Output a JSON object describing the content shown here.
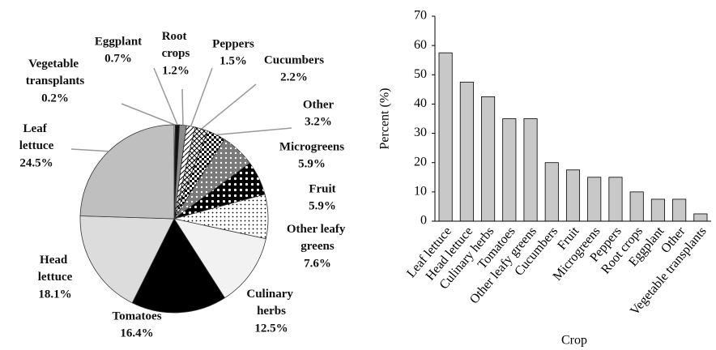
{
  "chart_data": [
    {
      "type": "pie",
      "categories": [
        "Vegetable transplants",
        "Eggplant",
        "Root crops",
        "Peppers",
        "Cucumbers",
        "Other",
        "Microgreens",
        "Fruit",
        "Other leafy greens",
        "Culinary herbs",
        "Tomatoes",
        "Head lettuce",
        "Leaf lettuce"
      ],
      "values": [
        0.2,
        0.7,
        1.2,
        1.5,
        2.2,
        3.2,
        5.9,
        5.9,
        7.6,
        12.5,
        16.4,
        18.1,
        24.5
      ],
      "value_labels": [
        "0.2%",
        "0.7%",
        "1.2%",
        "1.5%",
        "2.2%",
        "3.2%",
        "5.9%",
        "5.9%",
        "7.6%",
        "12.5%",
        "16.4%",
        "18.1%",
        "24.5%"
      ],
      "colors": [
        "#ffffff",
        "#111111",
        "#8c8c8c",
        "#ffffff",
        "#ffffff",
        "#ffffff",
        "#7a7a7a",
        "#000000",
        "#ffffff",
        "#f2f2f2",
        "#000000",
        "#dcdcdc",
        "#bfbfbf"
      ]
    },
    {
      "type": "bar",
      "categories": [
        "Leaf lettuce",
        "Head lettuce",
        "Culinary herbs",
        "Tomatoes",
        "Other leafy greens",
        "Cucumbers",
        "Fruit",
        "Microgreens",
        "Peppers",
        "Root crops",
        "Eggplant",
        "Other",
        "Vegetable transplants"
      ],
      "values": [
        57.5,
        47.5,
        42.5,
        35,
        35,
        20,
        17.5,
        15,
        15,
        10,
        7.5,
        7.5,
        2.5
      ],
      "color": "#c8c8c8",
      "x_label": "Crop",
      "y_label": "Percent (%)",
      "ylim": [
        0,
        70
      ],
      "yticks": [
        0,
        10,
        20,
        30,
        40,
        50,
        60,
        70
      ]
    }
  ]
}
